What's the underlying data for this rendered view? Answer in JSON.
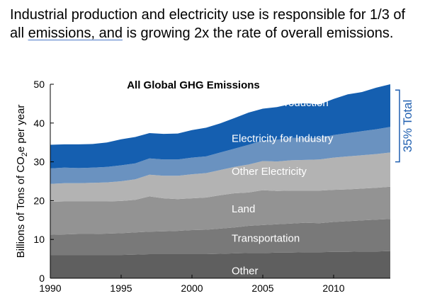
{
  "headline": {
    "part1": "Industrial production and electricity use is responsible for 1/3 of all ",
    "underlined": "emissions, and",
    "part2": " is growing 2x the rate of overall emissions."
  },
  "colors": {
    "other": "#5f5f5f",
    "transportation": "#797979",
    "land": "#939393",
    "other_electricity": "#b3b3b3",
    "electricity_for_industry": "#6a92c0",
    "industrial_production": "#155fb0",
    "bracket": "#1f5fb0"
  },
  "chart_data": {
    "type": "area",
    "stacked": true,
    "title": "All Global GHG Emissions",
    "ylabel_parts": [
      "Billions of Tons of CO",
      "2",
      "e per year"
    ],
    "xlim": [
      1990,
      2014
    ],
    "ylim": [
      0,
      50
    ],
    "xticks": [
      1990,
      1995,
      2000,
      2005,
      2010
    ],
    "yticks": [
      0,
      10,
      20,
      30,
      40,
      50
    ],
    "grid": false,
    "x": [
      1990,
      1991,
      1992,
      1993,
      1994,
      1995,
      1996,
      1997,
      1998,
      1999,
      2000,
      2001,
      2002,
      2003,
      2004,
      2005,
      2006,
      2007,
      2008,
      2009,
      2010,
      2011,
      2012,
      2013,
      2014
    ],
    "series": [
      {
        "name": "Other",
        "color_key": "other",
        "values": [
          6.0,
          6.0,
          6.0,
          6.0,
          6.0,
          6.0,
          6.1,
          6.2,
          6.2,
          6.2,
          6.2,
          6.2,
          6.3,
          6.4,
          6.5,
          6.5,
          6.6,
          6.6,
          6.7,
          6.7,
          6.8,
          6.8,
          6.9,
          6.9,
          7.0
        ]
      },
      {
        "name": "Transportation",
        "color_key": "transportation",
        "values": [
          5.2,
          5.3,
          5.4,
          5.4,
          5.5,
          5.6,
          5.7,
          5.8,
          5.9,
          6.0,
          6.2,
          6.3,
          6.5,
          6.7,
          7.0,
          7.2,
          7.3,
          7.5,
          7.6,
          7.5,
          7.7,
          7.9,
          8.0,
          8.2,
          8.3
        ]
      },
      {
        "name": "Land",
        "color_key": "land",
        "values": [
          8.5,
          8.5,
          8.4,
          8.4,
          8.3,
          8.3,
          8.4,
          9.1,
          8.5,
          8.2,
          8.2,
          8.3,
          8.6,
          8.8,
          8.6,
          9.0,
          8.6,
          8.5,
          8.3,
          8.4,
          8.3,
          8.2,
          8.2,
          8.2,
          8.3
        ]
      },
      {
        "name": "Other Electricity",
        "color_key": "other_electricity",
        "values": [
          4.6,
          4.7,
          4.7,
          4.8,
          4.9,
          5.1,
          5.3,
          5.6,
          5.8,
          6.0,
          6.2,
          6.3,
          6.5,
          6.8,
          7.2,
          7.5,
          7.6,
          7.8,
          7.9,
          8.0,
          8.3,
          8.5,
          8.6,
          8.7,
          8.8
        ]
      },
      {
        "name": "Electricity for Industry",
        "color_key": "electricity_for_industry",
        "values": [
          4.0,
          4.0,
          3.9,
          3.9,
          4.0,
          4.1,
          4.1,
          4.2,
          4.2,
          4.2,
          4.3,
          4.3,
          4.5,
          4.7,
          5.1,
          5.3,
          5.6,
          5.8,
          5.6,
          5.5,
          5.8,
          6.0,
          6.2,
          6.4,
          6.6
        ]
      },
      {
        "name": "Industrial Production",
        "color_key": "industrial_production",
        "values": [
          6.1,
          6.0,
          6.1,
          6.1,
          6.3,
          6.7,
          6.8,
          6.5,
          6.6,
          6.7,
          7.1,
          7.4,
          7.5,
          7.9,
          8.3,
          8.2,
          8.4,
          8.7,
          9.0,
          8.7,
          9.3,
          10.0,
          10.1,
          10.7,
          11.0
        ]
      }
    ],
    "labels": [
      {
        "text": "Industrial Production",
        "x": 2002.8,
        "y": 44.3
      },
      {
        "text": "Electricity for Industry",
        "x": 2002.8,
        "y": 35.1
      },
      {
        "text": "Other Electricity",
        "x": 2002.8,
        "y": 26.6
      },
      {
        "text": "Land",
        "x": 2002.8,
        "y": 17.0
      },
      {
        "text": "Transportation",
        "x": 2002.8,
        "y": 9.4
      },
      {
        "text": "Other",
        "x": 2002.8,
        "y": 1.0
      }
    ],
    "annotation": {
      "text": "35% Total",
      "from": 30.0,
      "to": 48.5
    }
  }
}
